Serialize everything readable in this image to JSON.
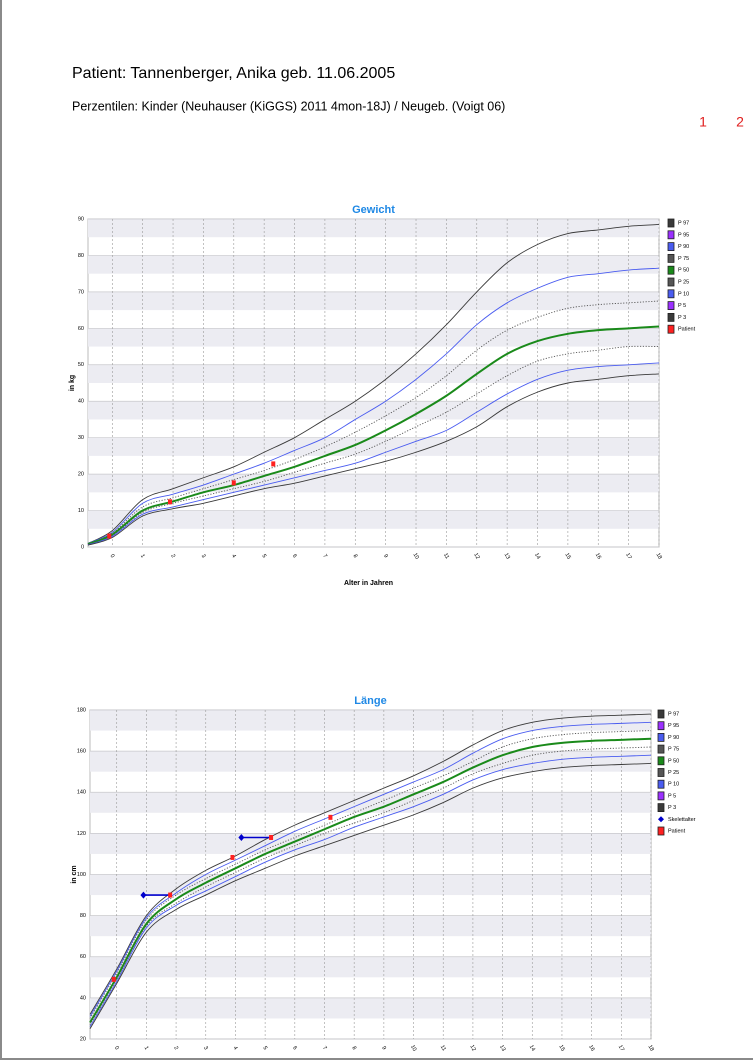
{
  "header": {
    "title": "Patient: Tannenberger, Anika geb. 11.06.2005",
    "subtitle": "Perzentilen: Kinder (Neuhauser (KiGGS) 2011 4mon-18J) / Neugeb. (Voigt 06)",
    "pages": [
      "1",
      "2"
    ]
  },
  "chart_data": [
    {
      "type": "line",
      "title": "Gewicht",
      "y_label": "in kg",
      "x_label": "Alter in Jahren",
      "xlim": [
        -0.8,
        18
      ],
      "xticks": [
        0,
        1,
        2,
        3,
        4,
        5,
        6,
        7,
        8,
        9,
        10,
        11,
        12,
        13,
        14,
        15,
        16,
        17,
        18
      ],
      "ylim": [
        0,
        90
      ],
      "yticks": [
        0,
        10,
        20,
        30,
        40,
        50,
        60,
        70,
        80,
        90
      ],
      "grid": true,
      "x": [
        -0.8,
        0,
        1,
        2,
        3,
        4,
        5,
        6,
        7,
        8,
        9,
        10,
        11,
        12,
        13,
        14,
        15,
        16,
        17,
        18
      ],
      "series": [
        {
          "name": "P 97",
          "color": "#3a3a3a",
          "values": [
            1,
            4.5,
            13,
            16,
            19,
            22,
            26,
            30,
            35,
            40,
            46,
            53,
            61,
            70,
            78,
            83,
            86,
            87,
            88,
            88.5
          ]
        },
        {
          "name": "P 95",
          "color": "#9b30ff",
          "values": null
        },
        {
          "name": "P 90",
          "color": "#4a5cf0",
          "values": [
            1,
            4,
            12,
            14.5,
            17,
            20,
            23,
            26.5,
            30,
            35,
            40,
            46,
            53,
            61,
            67,
            71,
            74,
            75,
            76,
            76.5
          ]
        },
        {
          "name": "P 75",
          "color": "#555555",
          "style": "dotted",
          "values": [
            0.9,
            3.8,
            11,
            13.5,
            16,
            18.5,
            21,
            24,
            27.5,
            31.5,
            36,
            41,
            47,
            54,
            59.5,
            63,
            65.5,
            66.5,
            67,
            67.5
          ]
        },
        {
          "name": "P 50",
          "color": "#1a8a1a",
          "width": 2,
          "values": [
            0.8,
            3.4,
            10,
            12.5,
            15,
            17,
            19.5,
            22,
            25,
            28,
            32,
            36.5,
            41.5,
            47.5,
            53,
            56.5,
            58.5,
            59.5,
            60,
            60.5
          ]
        },
        {
          "name": "P 25",
          "color": "#555555",
          "style": "dotted",
          "values": [
            0.7,
            3.1,
            9.5,
            12,
            14,
            16,
            18,
            20.5,
            23,
            25.5,
            29,
            33,
            37,
            42,
            47,
            51,
            53,
            54,
            55,
            55
          ]
        },
        {
          "name": "P 10",
          "color": "#4a5cf0",
          "values": [
            0.6,
            2.9,
            9,
            11,
            13,
            15,
            17,
            19,
            21,
            23,
            26,
            29,
            32,
            37,
            42,
            46,
            48.5,
            49.5,
            50,
            50.5
          ]
        },
        {
          "name": "P 5",
          "color": "#9b30ff",
          "values": null
        },
        {
          "name": "P 3",
          "color": "#3a3a3a",
          "values": [
            0.5,
            2.6,
            8.5,
            10.5,
            12,
            14,
            16,
            17.5,
            19.5,
            21.5,
            23.5,
            26,
            29,
            33,
            38.5,
            42.5,
            45,
            46,
            47,
            47.5
          ]
        },
        {
          "name": "Patient",
          "color": "#ff2020",
          "type": "scatter",
          "marker": "square",
          "x": [
            -0.1,
            1.9,
            4.0,
            5.3
          ],
          "values": [
            3,
            12.4,
            17.6,
            22.8
          ]
        }
      ]
    },
    {
      "type": "line",
      "title": "Länge",
      "y_label": "in cm",
      "xlim": [
        -0.9,
        18
      ],
      "xticks": [
        0,
        1,
        2,
        3,
        4,
        5,
        6,
        7,
        8,
        9,
        10,
        11,
        12,
        13,
        14,
        15,
        16,
        17,
        18
      ],
      "ylim": [
        20,
        180
      ],
      "yticks": [
        20,
        40,
        60,
        80,
        100,
        120,
        140,
        160,
        180
      ],
      "grid": true,
      "x": [
        -0.9,
        0,
        1,
        2,
        3,
        4,
        5,
        6,
        7,
        8,
        9,
        10,
        11,
        12,
        13,
        14,
        15,
        16,
        17,
        18
      ],
      "series": [
        {
          "name": "P 97",
          "color": "#3a3a3a",
          "values": [
            32,
            54,
            80,
            93,
            102,
            109,
            117,
            124,
            130,
            136,
            142,
            148,
            155,
            163,
            170,
            174,
            176,
            177,
            177.5,
            178
          ]
        },
        {
          "name": "P 95",
          "color": "#9b30ff",
          "values": null
        },
        {
          "name": "P 90",
          "color": "#4a5cf0",
          "values": [
            31,
            53,
            79,
            91,
            100,
            107,
            114,
            121,
            127,
            133,
            139,
            145,
            151,
            159,
            166,
            170,
            172,
            173,
            173.5,
            174
          ]
        },
        {
          "name": "P 75",
          "color": "#555555",
          "style": "dotted",
          "values": [
            30,
            52,
            78,
            90,
            98,
            105,
            112,
            118,
            124,
            130,
            136,
            142,
            148,
            155,
            162,
            166,
            168,
            169,
            169.5,
            170
          ]
        },
        {
          "name": "P 50",
          "color": "#1a8a1a",
          "width": 2,
          "values": [
            28,
            50,
            76,
            88,
            96,
            103,
            110,
            116,
            122,
            128,
            133,
            139,
            145,
            152,
            158,
            162,
            164,
            165,
            165.5,
            166
          ]
        },
        {
          "name": "P 25",
          "color": "#555555",
          "style": "dotted",
          "values": [
            27,
            49,
            75,
            86,
            94,
            101,
            108,
            114,
            120,
            125,
            130,
            136,
            142,
            149,
            154,
            158,
            160,
            161,
            161.5,
            162
          ]
        },
        {
          "name": "P 10",
          "color": "#4a5cf0",
          "values": [
            26,
            48,
            74,
            85,
            92,
            99,
            106,
            112,
            117,
            123,
            128,
            133,
            139,
            146,
            151,
            154,
            156,
            157,
            157.5,
            158
          ]
        },
        {
          "name": "P 5",
          "color": "#9b30ff",
          "values": null
        },
        {
          "name": "P 3",
          "color": "#3a3a3a",
          "values": [
            25,
            47,
            72,
            83,
            90,
            97,
            103,
            109,
            114,
            119,
            124,
            129,
            135,
            142,
            147,
            150,
            152,
            153,
            153.5,
            154
          ]
        },
        {
          "name": "Skelettalter",
          "color": "#0000cc",
          "type": "scatter",
          "marker": "diamond",
          "x": [
            0.9,
            4.2
          ],
          "values": [
            90,
            118
          ]
        },
        {
          "name": "Patient",
          "color": "#ff2020",
          "type": "scatter",
          "marker": "square",
          "x": [
            -0.1,
            1.8,
            3.9,
            5.2,
            7.2
          ],
          "values": [
            49,
            90,
            108.3,
            118,
            127.8
          ]
        }
      ]
    }
  ]
}
